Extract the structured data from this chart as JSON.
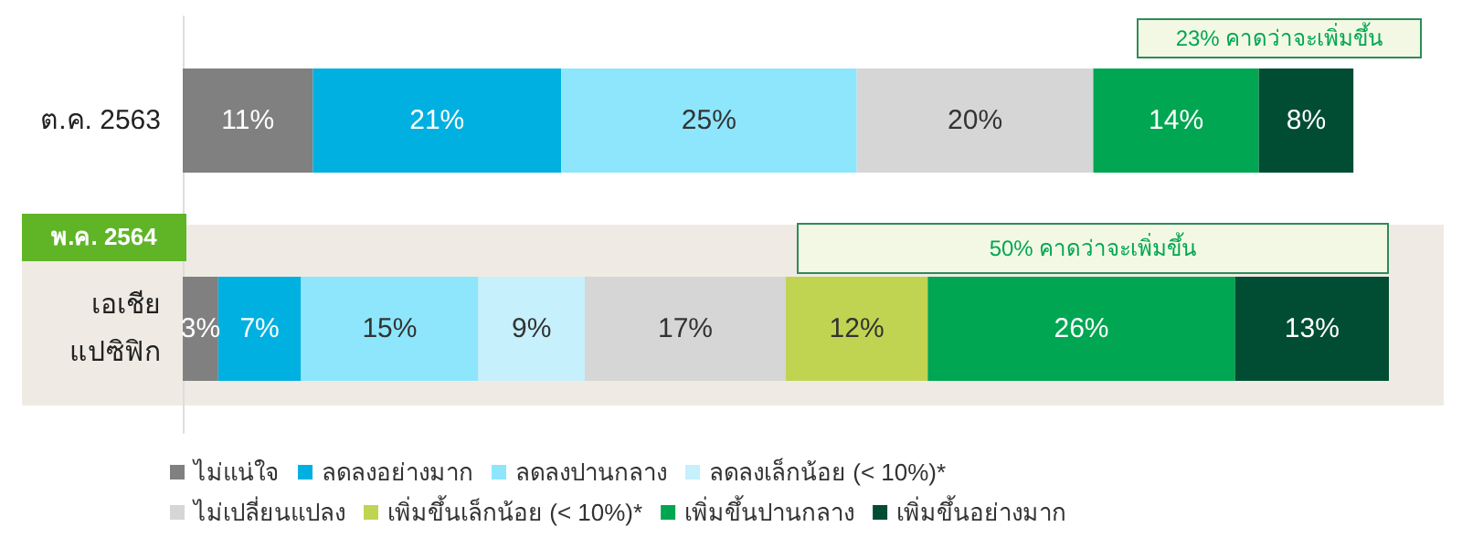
{
  "chart_data": {
    "type": "bar",
    "orientation": "horizontal",
    "stacked": true,
    "categories": [
      "ต.ค. 2563",
      "เอเชีย\nแปซิฟิก"
    ],
    "tick_labels": "y",
    "legend": "bottom",
    "series": [
      {
        "name": "ไม่แน่ใจ",
        "color": "#808080",
        "values": [
          11,
          3
        ],
        "value_labels": [
          "11%",
          "3%"
        ]
      },
      {
        "name": "ลดลงอย่างมาก",
        "color": "#00b0e0",
        "values": [
          21,
          7
        ],
        "value_labels": [
          "21%",
          "7%"
        ]
      },
      {
        "name": "ลดลงปานกลาง",
        "color": "#8ee6fc",
        "values": [
          25,
          15
        ],
        "value_labels": [
          "25%",
          "15%"
        ]
      },
      {
        "name": "ลดลงเล็กน้อย (< 10%)*",
        "color": "#c6f0fb",
        "values": [
          null,
          9
        ],
        "value_labels": [
          null,
          "9%"
        ]
      },
      {
        "name": "ไม่เปลี่ยนแปลง",
        "color": "#d6d6d6",
        "values": [
          20,
          17
        ],
        "value_labels": [
          "20%",
          "17%"
        ]
      },
      {
        "name": "เพิ่มขึ้นเล็กน้อย (< 10%)*",
        "color": "#c0d452",
        "values": [
          null,
          12
        ],
        "value_labels": [
          null,
          "12%"
        ]
      },
      {
        "name": "เพิ่มขึ้นปานกลาง",
        "color": "#00a651",
        "values": [
          14,
          26
        ],
        "value_labels": [
          "14%",
          "26%"
        ]
      },
      {
        "name": "เพิ่มขึ้นอย่างมาก",
        "color": "#004d33",
        "values": [
          8,
          13
        ],
        "value_labels": [
          "8%",
          "13%"
        ]
      }
    ],
    "annotations": [
      "23% คาดว่าจะเพิ่มขึ้น",
      "พ.ค. 2564",
      "50% คาดว่าจะเพิ่มขึ้น"
    ]
  }
}
